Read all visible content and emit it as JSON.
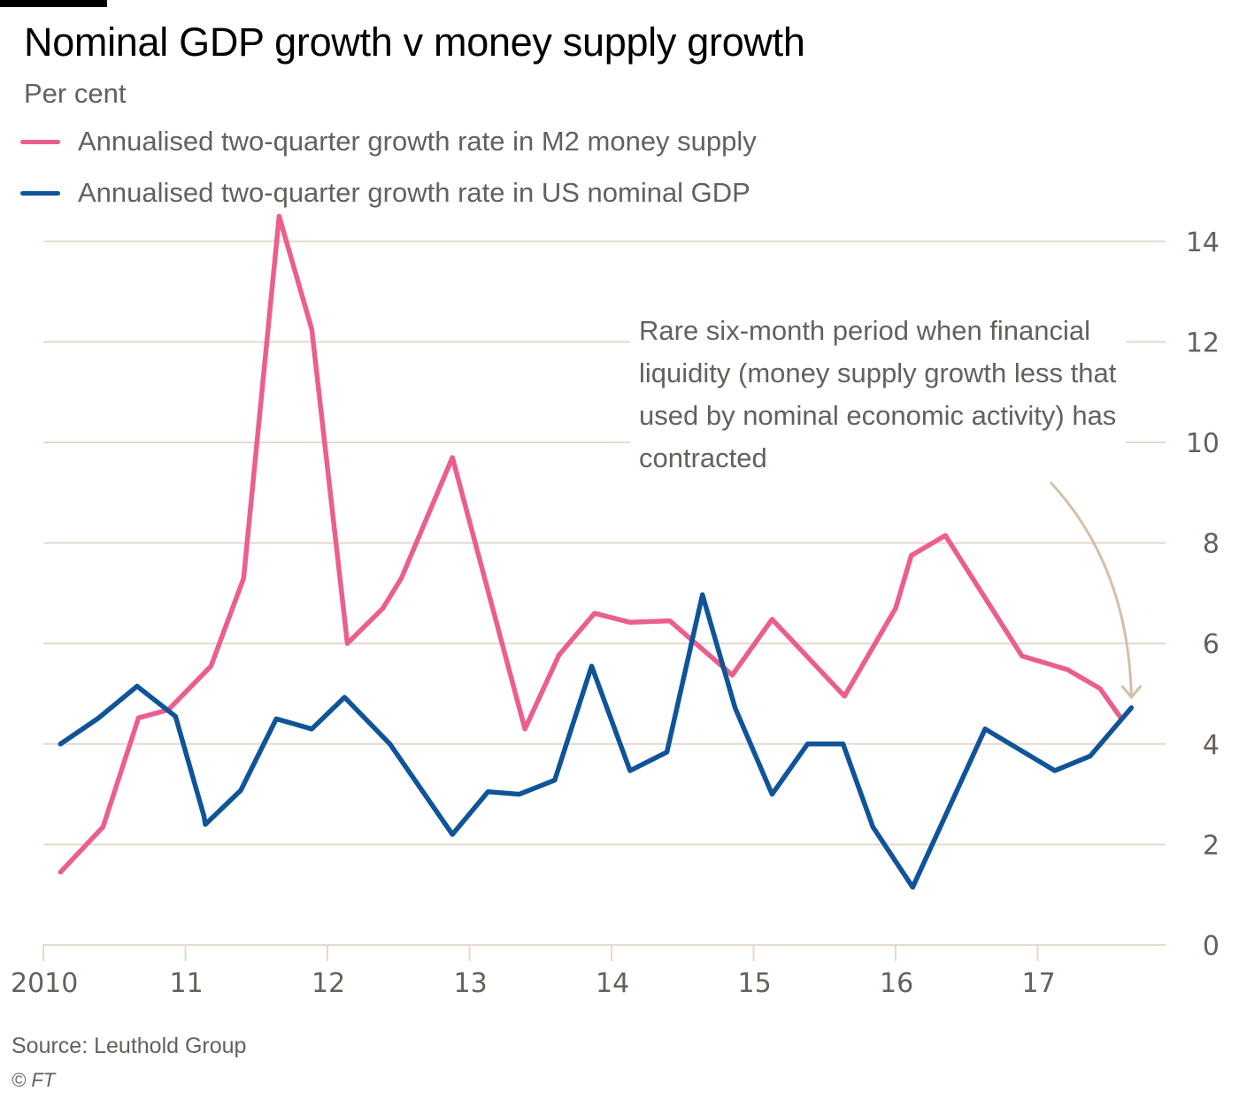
{
  "header": {
    "title": "Nominal GDP growth v money supply growth",
    "subtitle": "Per cent"
  },
  "legend": [
    {
      "label": "Annualised two-quarter growth rate in M2 money supply",
      "color": "#eb5e8d"
    },
    {
      "label": "Annualised two-quarter growth rate in US nominal GDP",
      "color": "#0f5499"
    }
  ],
  "annotation": {
    "text": "Rare six-month period when financial liquidity (money supply growth less that used by nominal economic activity) has contracted",
    "arrow_color": "#d4bfa8"
  },
  "footer": {
    "source": "Source: Leuthold Group",
    "copyright": "© FT"
  },
  "chart_data": {
    "type": "line",
    "title": "Nominal GDP growth v money supply growth",
    "subtitle": "Per cent",
    "xlabel": "",
    "ylabel": "Per cent",
    "xlim": [
      2010,
      17.9
    ],
    "ylim": [
      0,
      14
    ],
    "x_ticks": [
      2010,
      2011,
      2012,
      2013,
      2014,
      2015,
      2016,
      2017
    ],
    "x_tick_labels": [
      "2010",
      "11",
      "12",
      "13",
      "14",
      "15",
      "16",
      "17"
    ],
    "y_ticks": [
      0,
      2,
      4,
      6,
      8,
      10,
      12,
      14
    ],
    "y_tick_labels": [
      "0",
      "2",
      "4",
      "6",
      "8",
      "10",
      "12",
      "14"
    ],
    "y_axis_side": "right",
    "grid": true,
    "legend_position": "top-left",
    "gridline_color": "#e6d9ce",
    "series": [
      {
        "name": "Annualised two-quarter growth rate in M2 money supply",
        "color": "#eb5e8d",
        "x": [
          2010.12,
          2010.42,
          2010.67,
          2010.88,
          2011.18,
          2011.41,
          2011.66,
          2011.89,
          2012.14,
          2012.39,
          2012.52,
          2012.88,
          2013.39,
          2013.63,
          2013.88,
          2014.13,
          2014.41,
          2014.85,
          2015.13,
          2015.64,
          2016.0,
          2016.11,
          2016.35,
          2016.89,
          2017.21,
          2017.44,
          2017.58
        ],
        "values": [
          1.45,
          2.35,
          4.52,
          4.68,
          5.55,
          7.3,
          14.5,
          12.25,
          6.0,
          6.7,
          7.3,
          9.7,
          4.3,
          5.77,
          6.6,
          6.42,
          6.45,
          5.37,
          6.48,
          4.95,
          6.7,
          7.75,
          8.15,
          5.75,
          5.48,
          5.1,
          4.54
        ]
      },
      {
        "name": "Annualised two-quarter growth rate in US nominal GDP",
        "color": "#0f5499",
        "x": [
          2010.12,
          2010.39,
          2010.66,
          2010.93,
          2011.13,
          2011.14,
          2011.39,
          2011.64,
          2011.89,
          2012.12,
          2012.44,
          2012.88,
          2013.13,
          2013.35,
          2013.6,
          2013.86,
          2014.13,
          2014.39,
          2014.64,
          2014.87,
          2015.13,
          2015.38,
          2015.63,
          2015.84,
          2016.12,
          2016.63,
          2017.12,
          2017.37,
          2017.66
        ],
        "values": [
          4.0,
          4.52,
          5.15,
          4.55,
          2.57,
          2.4,
          3.08,
          4.5,
          4.3,
          4.93,
          4.0,
          2.2,
          3.05,
          3.0,
          3.28,
          5.55,
          3.47,
          3.84,
          6.97,
          4.72,
          3.0,
          4.0,
          4.0,
          2.35,
          1.15,
          4.3,
          3.47,
          3.76,
          4.72
        ]
      }
    ],
    "annotations": [
      {
        "text": "Rare six-month period when financial liquidity (money supply growth less that used by nominal economic activity) has contracted",
        "points_to": {
          "x": 2017.66,
          "y": 4.72
        }
      }
    ]
  }
}
